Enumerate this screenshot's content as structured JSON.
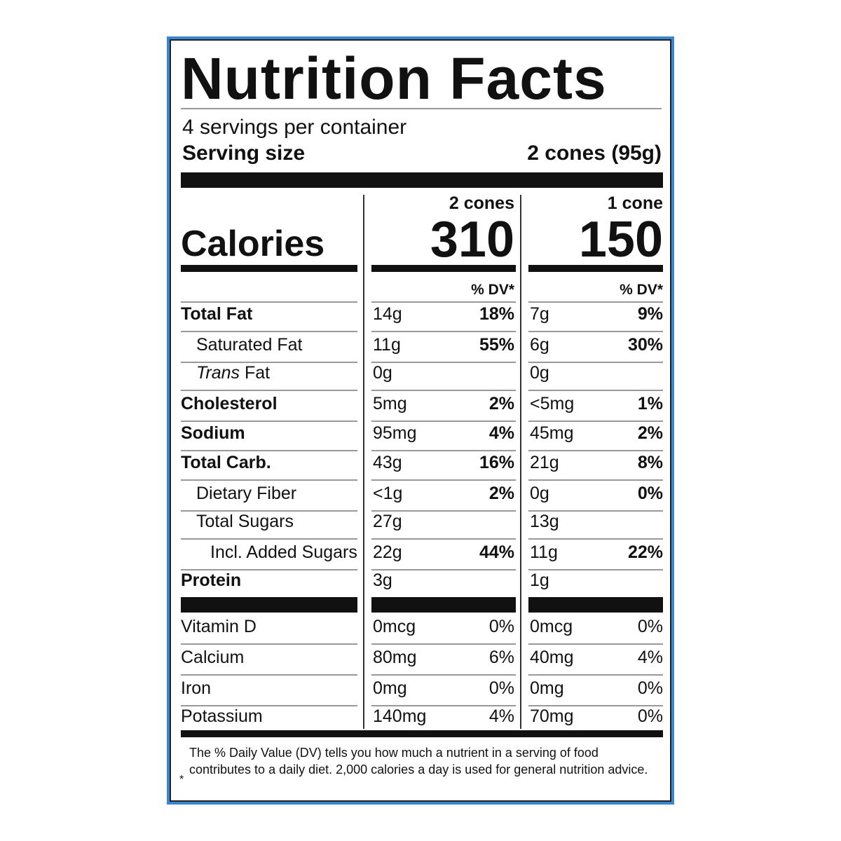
{
  "title": "Nutrition Facts",
  "servings_per_container": "4 servings per container",
  "serving_size_label": "Serving size",
  "serving_size_value": "2 cones (95g)",
  "calories_label": "Calories",
  "columns": [
    {
      "header": "2 cones",
      "calories": "310",
      "dv_header": "% DV*"
    },
    {
      "header": "1 cone",
      "calories": "150",
      "dv_header": "% DV*"
    }
  ],
  "nutrients": [
    {
      "label": "Total Fat",
      "bold": true,
      "indent": 0,
      "c1_amt": "14g",
      "c1_pct": "18%",
      "c2_amt": "7g",
      "c2_pct": "9%"
    },
    {
      "label": "Saturated Fat",
      "bold": false,
      "indent": 1,
      "c1_amt": "11g",
      "c1_pct": "55%",
      "c2_amt": "6g",
      "c2_pct": "30%"
    },
    {
      "label_italic": "Trans",
      "label": " Fat",
      "bold": false,
      "indent": 1,
      "c1_amt": "0g",
      "c1_pct": "",
      "c2_amt": "0g",
      "c2_pct": ""
    },
    {
      "label": "Cholesterol",
      "bold": true,
      "indent": 0,
      "c1_amt": "5mg",
      "c1_pct": "2%",
      "c2_amt": "<5mg",
      "c2_pct": "1%"
    },
    {
      "label": "Sodium",
      "bold": true,
      "indent": 0,
      "c1_amt": "95mg",
      "c1_pct": "4%",
      "c2_amt": "45mg",
      "c2_pct": "2%"
    },
    {
      "label": "Total Carb.",
      "bold": true,
      "indent": 0,
      "c1_amt": "43g",
      "c1_pct": "16%",
      "c2_amt": "21g",
      "c2_pct": "8%"
    },
    {
      "label": "Dietary Fiber",
      "bold": false,
      "indent": 1,
      "c1_amt": "<1g",
      "c1_pct": "2%",
      "c2_amt": "0g",
      "c2_pct": "0%"
    },
    {
      "label": "Total Sugars",
      "bold": false,
      "indent": 1,
      "c1_amt": "27g",
      "c1_pct": "",
      "c2_amt": "13g",
      "c2_pct": ""
    },
    {
      "label": "Incl. Added Sugars",
      "bold": false,
      "indent": 2,
      "c1_amt": "22g",
      "c1_pct": "44%",
      "c2_amt": "11g",
      "c2_pct": "22%"
    },
    {
      "label": "Protein",
      "bold": true,
      "indent": 0,
      "c1_amt": "3g",
      "c1_pct": "",
      "c2_amt": "1g",
      "c2_pct": ""
    }
  ],
  "vitamins": [
    {
      "label": "Vitamin D",
      "c1_amt": "0mcg",
      "c1_pct": "0%",
      "c2_amt": "0mcg",
      "c2_pct": "0%"
    },
    {
      "label": "Calcium",
      "c1_amt": "80mg",
      "c1_pct": "6%",
      "c2_amt": "40mg",
      "c2_pct": "4%"
    },
    {
      "label": "Iron",
      "c1_amt": "0mg",
      "c1_pct": "0%",
      "c2_amt": "0mg",
      "c2_pct": "0%"
    },
    {
      "label": "Potassium",
      "c1_amt": "140mg",
      "c1_pct": "4%",
      "c2_amt": "70mg",
      "c2_pct": "0%"
    }
  ],
  "footnote_star": "*",
  "footnote": "The % Daily Value (DV) tells you how much a nutrient in a serving of food contributes to a daily diet. 2,000 calories a day is used for general nutrition advice."
}
